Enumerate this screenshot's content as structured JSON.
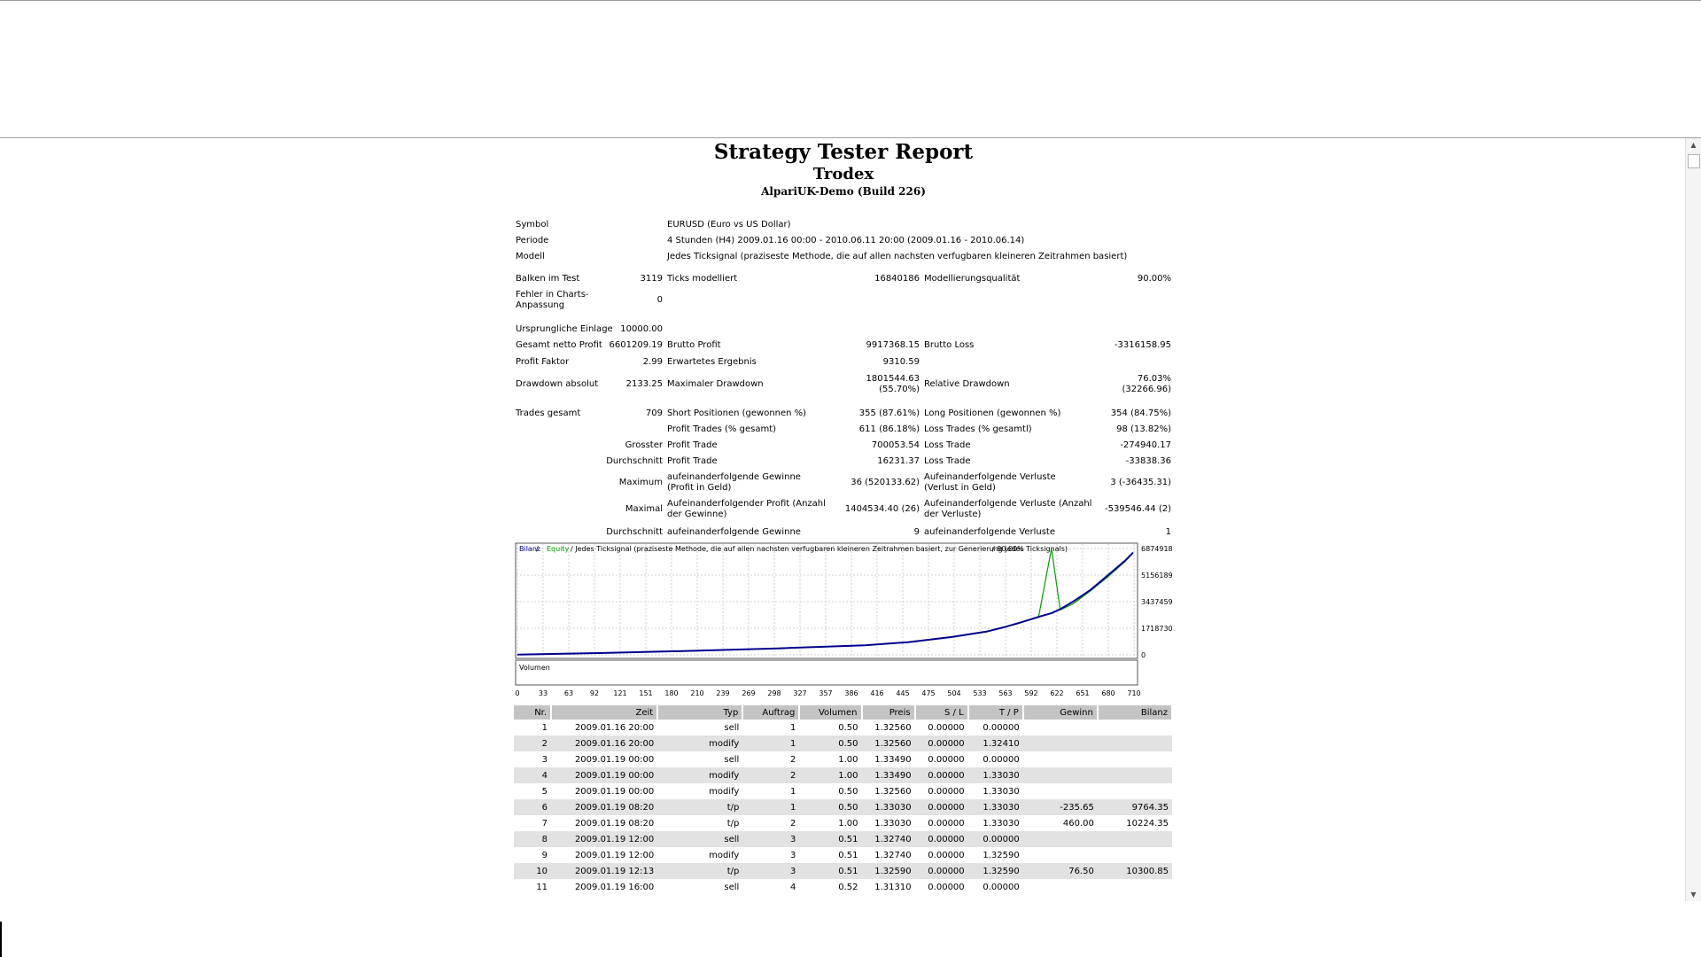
{
  "report": {
    "title": "Strategy Tester Report",
    "expert": "Trodex",
    "server": "AlpariUK-Demo (Build 226)"
  },
  "settings": {
    "symbol_label": "Symbol",
    "symbol_value": "EURUSD (Euro vs US Dollar)",
    "period_label": "Periode",
    "period_value": "4 Stunden (H4) 2009.01.16 00:00 - 2010.06.11 20:00 (2009.01.16 - 2010.06.14)",
    "model_label": "Modell",
    "model_value": "Jedes Ticksignal (praziseste Methode, die auf allen nachsten verfugbaren kleineren Zeitrahmen basiert)"
  },
  "stats": {
    "bars_label": "Balken im Test",
    "bars_value": "3119",
    "ticks_label": "Ticks modelliert",
    "ticks_value": "16840186",
    "quality_label": "Modellierungsqualität",
    "quality_value": "90.00%",
    "mismatch_label": "Fehler in Charts-Anpassung",
    "mismatch_value": "0",
    "deposit_label": "Ursprungliche Einlage",
    "deposit_value": "10000.00",
    "net_profit_label": "Gesamt netto Profit",
    "net_profit_value": "6601209.19",
    "gross_profit_label": "Brutto Profit",
    "gross_profit_value": "9917368.15",
    "gross_loss_label": "Brutto Loss",
    "gross_loss_value": "-3316158.95",
    "profit_factor_label": "Profit Faktor",
    "profit_factor_value": "2.99",
    "expected_payoff_label": "Erwartetes Ergebnis",
    "expected_payoff_value": "9310.59",
    "abs_dd_label": "Drawdown absolut",
    "abs_dd_value": "2133.25",
    "max_dd_label": "Maximaler Drawdown",
    "max_dd_value1": "1801544.63",
    "max_dd_value2": "(55.70%)",
    "rel_dd_label": "Relative Drawdown",
    "rel_dd_value1": "76.03%",
    "rel_dd_value2": "(32266.96)",
    "total_trades_label": "Trades gesamt",
    "total_trades_value": "709",
    "short_label": "Short Positionen (gewonnen %)",
    "short_value": "355 (87.61%)",
    "long_label": "Long Positionen (gewonnen %)",
    "long_value": "354 (84.75%)",
    "profit_trades_label": "Profit Trades (% gesamt)",
    "profit_trades_value": "611 (86.18%)",
    "loss_trades_label": "Loss Trades (% gesamtl)",
    "loss_trades_value": "98 (13.82%)",
    "largest_label": "Grosster",
    "largest_profit_label": "Profit Trade",
    "largest_profit_value": "700053.54",
    "largest_loss_label": "Loss Trade",
    "largest_loss_value": "-274940.17",
    "average_label": "Durchschnitt",
    "average_profit_label": "Profit Trade",
    "average_profit_value": "16231.37",
    "average_loss_label": "Loss Trade",
    "average_loss_value": "-33838.36",
    "maximum_label": "Maximum",
    "max_consec_wins_label": "aufeinanderfolgende Gewinne (Profit in Geld)",
    "max_consec_wins_value": "36 (520133.62)",
    "max_consec_losses_label": "Aufeinanderfolgende Verluste (Verlust in Geld)",
    "max_consec_losses_value": "3 (-36435.31)",
    "maximal_label": "Maximal",
    "maximal_profit_label": "Aufeinanderfolgender Profit (Anzahl der Gewinne)",
    "maximal_profit_value": "1404534.40 (26)",
    "maximal_loss_label": "Aufeinanderfolgende Verluste (Anzahl der Verluste)",
    "maximal_loss_value": "-539546.44 (2)",
    "avg2_label": "Durchschnitt",
    "avg_consec_wins_label": "aufeinanderfolgende Gewinne",
    "avg_consec_wins_value": "9",
    "avg_consec_losses_label": "aufeinanderfolgende Verluste",
    "avg_consec_losses_value": "1"
  },
  "chart_legend": {
    "balance": "Bilanz",
    "sep1": " / ",
    "equity": "Equity",
    "rest": " / Jedes  Ticksignal (praziseste Methode, die auf allen nachsten verfugbaren kleineren Zeitrahmen basiert, zur Generierung jedes Ticksignals)",
    "quality": " / 90.00%",
    "volume": "Volumen"
  },
  "chart_data": {
    "type": "line",
    "x": [
      0,
      100,
      200,
      300,
      400,
      450,
      500,
      540,
      560,
      580,
      600,
      615,
      625,
      640,
      660,
      680,
      700,
      709
    ],
    "series": [
      {
        "name": "Bilanz",
        "values": [
          10000,
          120000,
          260000,
          420000,
          620000,
          820000,
          1150000,
          1500000,
          1780000,
          2100000,
          2450000,
          2700000,
          2950000,
          3450000,
          4200000,
          5150000,
          6100000,
          6611209
        ]
      },
      {
        "name": "Equity",
        "values": [
          10000,
          118000,
          255000,
          415000,
          615000,
          815000,
          1140000,
          1490000,
          1770000,
          2090000,
          2430000,
          6874918,
          2900000,
          3300000,
          4150000,
          5050000,
          6050000,
          6611209
        ]
      }
    ],
    "y_ticks": [
      "6874918",
      "5156189",
      "3437459",
      "1718730",
      "0"
    ],
    "x_ticks": [
      "0",
      "33",
      "63",
      "92",
      "121",
      "151",
      "180",
      "210",
      "239",
      "269",
      "298",
      "327",
      "357",
      "386",
      "416",
      "445",
      "475",
      "504",
      "533",
      "563",
      "592",
      "622",
      "651",
      "680",
      "710"
    ],
    "ylim": [
      0,
      6874918
    ],
    "xlim": [
      0,
      710
    ],
    "grid": true,
    "colors": {
      "balance": "#00008b",
      "equity": "#00a000"
    }
  },
  "trades": {
    "headers": [
      "Nr.",
      "Zeit",
      "Typ",
      "Auftrag",
      "Volumen",
      "Preis",
      "S / L",
      "T / P",
      "Gewinn",
      "Bilanz"
    ],
    "rows": [
      [
        "1",
        "2009.01.16 20:00",
        "sell",
        "1",
        "0.50",
        "1.32560",
        "0.00000",
        "0.00000",
        "",
        ""
      ],
      [
        "2",
        "2009.01.16 20:00",
        "modify",
        "1",
        "0.50",
        "1.32560",
        "0.00000",
        "1.32410",
        "",
        ""
      ],
      [
        "3",
        "2009.01.19 00:00",
        "sell",
        "2",
        "1.00",
        "1.33490",
        "0.00000",
        "0.00000",
        "",
        ""
      ],
      [
        "4",
        "2009.01.19 00:00",
        "modify",
        "2",
        "1.00",
        "1.33490",
        "0.00000",
        "1.33030",
        "",
        ""
      ],
      [
        "5",
        "2009.01.19 00:00",
        "modify",
        "1",
        "0.50",
        "1.32560",
        "0.00000",
        "1.33030",
        "",
        ""
      ],
      [
        "6",
        "2009.01.19 08:20",
        "t/p",
        "1",
        "0.50",
        "1.33030",
        "0.00000",
        "1.33030",
        "-235.65",
        "9764.35"
      ],
      [
        "7",
        "2009.01.19 08:20",
        "t/p",
        "2",
        "1.00",
        "1.33030",
        "0.00000",
        "1.33030",
        "460.00",
        "10224.35"
      ],
      [
        "8",
        "2009.01.19 12:00",
        "sell",
        "3",
        "0.51",
        "1.32740",
        "0.00000",
        "0.00000",
        "",
        ""
      ],
      [
        "9",
        "2009.01.19 12:00",
        "modify",
        "3",
        "0.51",
        "1.32740",
        "0.00000",
        "1.32590",
        "",
        ""
      ],
      [
        "10",
        "2009.01.19 12:13",
        "t/p",
        "3",
        "0.51",
        "1.32590",
        "0.00000",
        "1.32590",
        "76.50",
        "10300.85"
      ],
      [
        "11",
        "2009.01.19 16:00",
        "sell",
        "4",
        "0.52",
        "1.31310",
        "0.00000",
        "0.00000",
        "",
        ""
      ]
    ]
  },
  "scrollbar": {
    "up": "▲",
    "down": "▼"
  }
}
